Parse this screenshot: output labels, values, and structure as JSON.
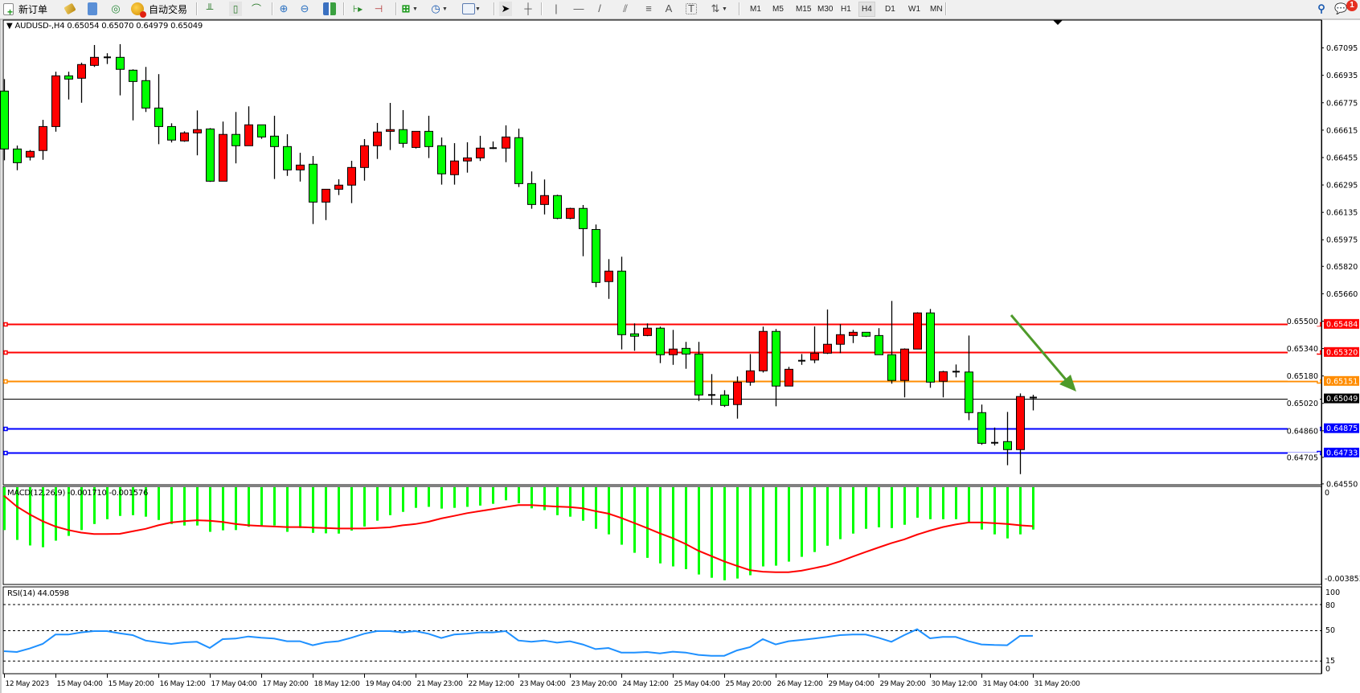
{
  "toolbar": {
    "new_order_label": "新订单",
    "autotrade_label": "自动交易",
    "timeframes": [
      "M1",
      "M5",
      "M15",
      "M30",
      "H1",
      "H4",
      "D1",
      "W1",
      "MN"
    ],
    "active_timeframe": "H4",
    "notification_count": "1"
  },
  "chart": {
    "symbol_info": "AUDUSD-,H4  0.65054 0.65070 0.64979 0.65049",
    "macd_label": "MACD(12,26,9) -0.001710 -0.001576",
    "rsi_label": "RSI(14) 44.0598",
    "background": "#ffffff"
  },
  "chart_data": [
    {
      "type": "candlestick",
      "symbol": "AUDUSD-",
      "timeframe": "H4",
      "up_color": "#ff0000",
      "down_color": "#00ff00",
      "ylim": [
        0.6455,
        0.67095
      ],
      "y_ticks": [
        "0.67095",
        "0.66935",
        "0.66775",
        "0.66615",
        "0.66455",
        "0.66295",
        "0.66135",
        "0.65975",
        "0.65820",
        "0.65660",
        "0.65500",
        "0.65340",
        "0.65180",
        "0.65020",
        "0.64860",
        "0.64705",
        "0.64550"
      ],
      "x_tick_labels": [
        "12 May 2023",
        "15 May 04:00",
        "15 May 20:00",
        "16 May 12:00",
        "17 May 04:00",
        "17 May 20:00",
        "18 May 12:00",
        "19 May 04:00",
        "21 May 23:00",
        "22 May 12:00",
        "23 May 04:00",
        "23 May 20:00",
        "24 May 12:00",
        "25 May 04:00",
        "25 May 20:00",
        "26 May 12:00",
        "29 May 04:00",
        "29 May 20:00",
        "30 May 12:00",
        "31 May 04:00",
        "31 May 20:00"
      ],
      "x_tick_every": 4,
      "ohlc": [
        [
          0.66843,
          0.66913,
          0.66439,
          0.66505
        ],
        [
          0.66505,
          0.66525,
          0.66381,
          0.66425
        ],
        [
          0.66458,
          0.66499,
          0.66438,
          0.66491
        ],
        [
          0.66496,
          0.66675,
          0.66442,
          0.66636
        ],
        [
          0.66636,
          0.66956,
          0.66606,
          0.66932
        ],
        [
          0.66932,
          0.66956,
          0.66794,
          0.66913
        ],
        [
          0.66918,
          0.67009,
          0.66775,
          0.66998
        ],
        [
          0.66993,
          0.67112,
          0.66984,
          0.6704
        ],
        [
          0.6704,
          0.67064,
          0.67001,
          0.67038
        ],
        [
          0.6704,
          0.67117,
          0.66818,
          0.6697
        ],
        [
          0.66965,
          0.6697,
          0.66672,
          0.66899
        ],
        [
          0.66904,
          0.66984,
          0.66721,
          0.66744
        ],
        [
          0.66744,
          0.66942,
          0.66533,
          0.66636
        ],
        [
          0.66636,
          0.66655,
          0.66543,
          0.66557
        ],
        [
          0.66552,
          0.66608,
          0.66547,
          0.66599
        ],
        [
          0.66599,
          0.6673,
          0.66468,
          0.66618
        ],
        [
          0.66622,
          0.66627,
          0.66313,
          0.66317
        ],
        [
          0.66317,
          0.66665,
          0.66317,
          0.6659
        ],
        [
          0.6659,
          0.66721,
          0.66421,
          0.66524
        ],
        [
          0.66524,
          0.66754,
          0.66524,
          0.66646
        ],
        [
          0.66646,
          0.66646,
          0.66564,
          0.66575
        ],
        [
          0.6658,
          0.66699,
          0.6633,
          0.66519
        ],
        [
          0.66519,
          0.66591,
          0.66348,
          0.66383
        ],
        [
          0.66383,
          0.66483,
          0.66315,
          0.66411
        ],
        [
          0.66416,
          0.66464,
          0.66067,
          0.66195
        ],
        [
          0.66195,
          0.6627,
          0.6609,
          0.6627
        ],
        [
          0.6627,
          0.66328,
          0.66236,
          0.66294
        ],
        [
          0.66294,
          0.66436,
          0.66189,
          0.66397
        ],
        [
          0.66397,
          0.66563,
          0.6632,
          0.66524
        ],
        [
          0.66524,
          0.66657,
          0.66447,
          0.66604
        ],
        [
          0.66608,
          0.66774,
          0.66499,
          0.66618
        ],
        [
          0.66618,
          0.66732,
          0.66513,
          0.66538
        ],
        [
          0.66514,
          0.66608,
          0.66508,
          0.66608
        ],
        [
          0.66608,
          0.66699,
          0.66452,
          0.66519
        ],
        [
          0.66524,
          0.66572,
          0.66297,
          0.6636
        ],
        [
          0.66355,
          0.66539,
          0.66297,
          0.66435
        ],
        [
          0.66435,
          0.66544,
          0.66367,
          0.66453
        ],
        [
          0.66453,
          0.66582,
          0.66435,
          0.6651
        ],
        [
          0.6651,
          0.66549,
          0.66505,
          0.66507
        ],
        [
          0.6651,
          0.66643,
          0.66428,
          0.66575
        ],
        [
          0.66571,
          0.66624,
          0.66283,
          0.66303
        ],
        [
          0.66303,
          0.66374,
          0.66156,
          0.66181
        ],
        [
          0.66181,
          0.66327,
          0.66123,
          0.66233
        ],
        [
          0.66233,
          0.66238,
          0.66095,
          0.661
        ],
        [
          0.661,
          0.66162,
          0.66095,
          0.66158
        ],
        [
          0.66158,
          0.66178,
          0.65879,
          0.6604
        ],
        [
          0.66035,
          0.66064,
          0.65698,
          0.65726
        ],
        [
          0.65731,
          0.65862,
          0.6563,
          0.65792
        ],
        [
          0.65792,
          0.65876,
          0.65335,
          0.65421
        ],
        [
          0.65426,
          0.65487,
          0.65327,
          0.65412
        ],
        [
          0.65416,
          0.65487,
          0.65412,
          0.65459
        ],
        [
          0.65459,
          0.65468,
          0.65255,
          0.65304
        ],
        [
          0.65304,
          0.65449,
          0.65245,
          0.65337
        ],
        [
          0.65341,
          0.65379,
          0.65222,
          0.65308
        ],
        [
          0.65308,
          0.65379,
          0.65034,
          0.65069
        ],
        [
          0.65069,
          0.65191,
          0.65011,
          0.65069
        ],
        [
          0.65069,
          0.65097,
          0.64999,
          0.65008
        ],
        [
          0.65013,
          0.65177,
          0.64931,
          0.65144
        ],
        [
          0.65144,
          0.65308,
          0.65123,
          0.6521
        ],
        [
          0.6521,
          0.65468,
          0.652,
          0.6544
        ],
        [
          0.6544,
          0.65454,
          0.65003,
          0.65121
        ],
        [
          0.65121,
          0.65233,
          0.65121,
          0.65219
        ],
        [
          0.65269,
          0.65308,
          0.65245,
          0.65269
        ],
        [
          0.65273,
          0.65469,
          0.65255,
          0.65313
        ],
        [
          0.65313,
          0.65568,
          0.65308,
          0.65365
        ],
        [
          0.65365,
          0.65482,
          0.65313,
          0.65421
        ],
        [
          0.65416,
          0.65449,
          0.65372,
          0.65435
        ],
        [
          0.65435,
          0.65435,
          0.65407,
          0.65412
        ],
        [
          0.65416,
          0.65459,
          0.65304,
          0.65304
        ],
        [
          0.65304,
          0.65618,
          0.65135,
          0.65154
        ],
        [
          0.65154,
          0.65341,
          0.65055,
          0.65337
        ],
        [
          0.65337,
          0.65552,
          0.65337,
          0.65548
        ],
        [
          0.65548,
          0.65571,
          0.65111,
          0.65144
        ],
        [
          0.65149,
          0.6521,
          0.65055,
          0.65205
        ],
        [
          0.65205,
          0.65247,
          0.65172,
          0.65203
        ],
        [
          0.65203,
          0.65416,
          0.64922,
          0.64966
        ],
        [
          0.64966,
          0.65013,
          0.64778,
          0.64787
        ],
        [
          0.64787,
          0.64879,
          0.64774,
          0.6479
        ],
        [
          0.64797,
          0.6497,
          0.64659,
          0.6475
        ],
        [
          0.6475,
          0.65078,
          0.64607,
          0.6506
        ],
        [
          0.65054,
          0.6507,
          0.64979,
          0.65049
        ]
      ],
      "horizontal_levels": [
        {
          "price": "0.65484",
          "color": "#ff0000"
        },
        {
          "price": "0.65320",
          "color": "#ff0000"
        },
        {
          "price": "0.65151",
          "color": "#ff8c00"
        },
        {
          "price": "0.65049",
          "color": "#000000",
          "type": "bid"
        },
        {
          "price": "0.64875",
          "color": "#0000ff"
        },
        {
          "price": "0.64733",
          "color": "#0000ff"
        }
      ],
      "annotations": [
        {
          "type": "arrow",
          "color": "#4e9a2a",
          "from_price": 0.65559,
          "to_price": 0.6506,
          "from_bar": 78,
          "to_bar": 83
        }
      ]
    },
    {
      "type": "bar+line",
      "indicator": "MACD(12,26,9)",
      "ylim": [
        -0.003853,
        0
      ],
      "y_ticks": [
        "0",
        "-0.003853"
      ],
      "histogram_color": "#00ff00",
      "signal_color": "#ff0000",
      "macd": [
        -0.00173,
        -0.00212,
        -0.00234,
        -0.00241,
        -0.00215,
        -0.00196,
        -0.00173,
        -0.00149,
        -0.0013,
        -0.00117,
        -0.00114,
        -0.0012,
        -0.00133,
        -0.00149,
        -0.00155,
        -0.00155,
        -0.0018,
        -0.00174,
        -0.00173,
        -0.0016,
        -0.00155,
        -0.00155,
        -0.0018,
        -0.00165,
        -0.00184,
        -0.00186,
        -0.00187,
        -0.00175,
        -0.00159,
        -0.00136,
        -0.00114,
        -0.00101,
        -0.00085,
        -0.00081,
        -0.00088,
        -0.00085,
        -0.00081,
        -0.00076,
        -0.00069,
        -0.00055,
        -0.00067,
        -0.00087,
        -0.00094,
        -0.00114,
        -0.0012,
        -0.00136,
        -0.00168,
        -0.0019,
        -0.00231,
        -0.00263,
        -0.00283,
        -0.00305,
        -0.00317,
        -0.00328,
        -0.00349,
        -0.00362,
        -0.00372,
        -0.00365,
        -0.00352,
        -0.00317,
        -0.00314,
        -0.00298,
        -0.00279,
        -0.0026,
        -0.00235,
        -0.00209,
        -0.00187,
        -0.00168,
        -0.00162,
        -0.00165,
        -0.00152,
        -0.00124,
        -0.0013,
        -0.0013,
        -0.0013,
        -0.00141,
        -0.00171,
        -0.0019,
        -0.00206,
        -0.0019,
        -0.00171
      ],
      "signal": [
        -0.00037,
        -0.0008,
        -0.00111,
        -0.00138,
        -0.00159,
        -0.00173,
        -0.00183,
        -0.00189,
        -0.00189,
        -0.00188,
        -0.00178,
        -0.00168,
        -0.00154,
        -0.00143,
        -0.00138,
        -0.00134,
        -0.00136,
        -0.00141,
        -0.00149,
        -0.00154,
        -0.00157,
        -0.00159,
        -0.00161,
        -0.00161,
        -0.00163,
        -0.00165,
        -0.00167,
        -0.00167,
        -0.00167,
        -0.00165,
        -0.00162,
        -0.00154,
        -0.00149,
        -0.0014,
        -0.00127,
        -0.00117,
        -0.00106,
        -0.00098,
        -0.0009,
        -0.00082,
        -0.00074,
        -0.00074,
        -0.00077,
        -0.0008,
        -0.00082,
        -0.00087,
        -0.00098,
        -0.00108,
        -0.00125,
        -0.00145,
        -0.00165,
        -0.00186,
        -0.00205,
        -0.00228,
        -0.00255,
        -0.00276,
        -0.00297,
        -0.00315,
        -0.00332,
        -0.00338,
        -0.0034,
        -0.0034,
        -0.00334,
        -0.00324,
        -0.00313,
        -0.00297,
        -0.00278,
        -0.0026,
        -0.00242,
        -0.00225,
        -0.0021,
        -0.00191,
        -0.00175,
        -0.00161,
        -0.00151,
        -0.00143,
        -0.00143,
        -0.00146,
        -0.00149,
        -0.00154,
        -0.001576
      ]
    },
    {
      "type": "line",
      "indicator": "RSI(14)",
      "ylim": [
        0,
        100
      ],
      "y_ticks": [
        "100",
        "80",
        "50",
        "15",
        "0"
      ],
      "levels": [
        80,
        50,
        15
      ],
      "color": "#1e90ff",
      "values": [
        26.4,
        25.4,
        29.5,
        34.7,
        45.5,
        45.5,
        48.0,
        49.5,
        49.5,
        47.0,
        44.9,
        38.7,
        36.5,
        34.7,
        36.5,
        37.2,
        30.1,
        40.2,
        40.9,
        43.3,
        41.8,
        40.9,
        37.8,
        37.8,
        33.2,
        36.5,
        37.8,
        41.8,
        46.4,
        49.5,
        49.5,
        48.0,
        49.5,
        46.4,
        41.5,
        45.5,
        46.4,
        48.0,
        48.0,
        49.5,
        38.7,
        37.2,
        38.7,
        36.2,
        37.8,
        34.1,
        28.8,
        30.1,
        24.8,
        24.8,
        25.4,
        23.9,
        25.8,
        24.8,
        22.1,
        21.1,
        21.1,
        27.3,
        31.0,
        40.2,
        34.1,
        37.8,
        39.3,
        40.9,
        42.7,
        44.9,
        45.5,
        45.5,
        41.8,
        37.2,
        44.9,
        51.6,
        41.2,
        42.7,
        42.7,
        37.8,
        34.1,
        33.5,
        33.2,
        43.9,
        44.0598
      ]
    }
  ]
}
